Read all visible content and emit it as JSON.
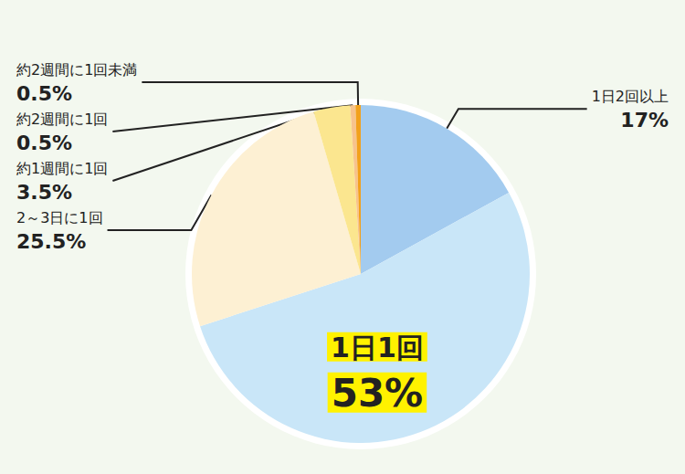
{
  "chart_data": {
    "type": "pie",
    "categories": [
      "1日2回以上",
      "1日1回",
      "2～3日に1回",
      "約1週間に1回",
      "約2週間に1回",
      "約2週間に1回未満"
    ],
    "values": [
      17,
      53,
      25.5,
      3.5,
      0.5,
      0.5
    ],
    "value_labels": [
      "17%",
      "53%",
      "25.5%",
      "3.5%",
      "0.5%",
      "0.5%"
    ],
    "colors": [
      "#a3cbef",
      "#c9e6f8",
      "#fdf0d3",
      "#fbe68f",
      "#f7c38c",
      "#f2a11c"
    ],
    "data_labels": true
  }
}
